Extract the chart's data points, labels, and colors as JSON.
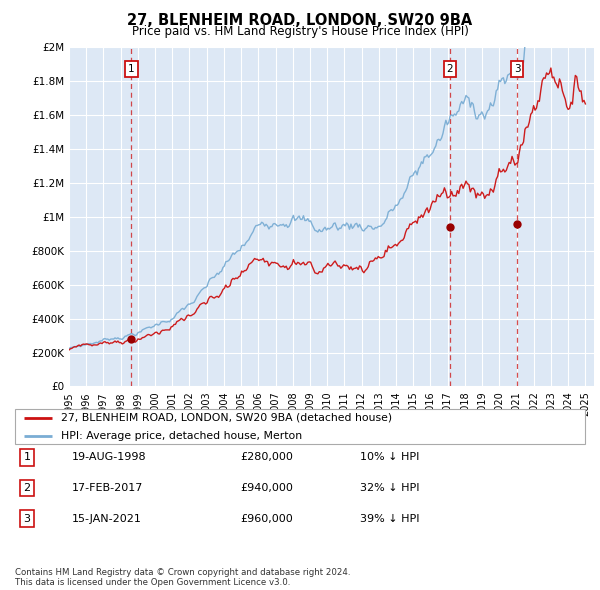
{
  "title": "27, BLENHEIM ROAD, LONDON, SW20 9BA",
  "subtitle": "Price paid vs. HM Land Registry's House Price Index (HPI)",
  "ylabel_ticks": [
    "£0",
    "£200K",
    "£400K",
    "£600K",
    "£800K",
    "£1M",
    "£1.2M",
    "£1.4M",
    "£1.6M",
    "£1.8M",
    "£2M"
  ],
  "ytick_values": [
    0,
    200000,
    400000,
    600000,
    800000,
    1000000,
    1200000,
    1400000,
    1600000,
    1800000,
    2000000
  ],
  "ylim": [
    0,
    2000000
  ],
  "xlim_start": 1995.3,
  "xlim_end": 2025.5,
  "hpi_color": "#7aadd4",
  "price_color": "#cc1111",
  "bg_color": "#dde8f5",
  "grid_color": "#ffffff",
  "sale_marker_color": "#990000",
  "vline_color": "#cc1111",
  "sale1_x": 1998.63,
  "sale1_y": 280000,
  "sale2_x": 2017.12,
  "sale2_y": 940000,
  "sale3_x": 2021.04,
  "sale3_y": 960000,
  "legend_label_price": "27, BLENHEIM ROAD, LONDON, SW20 9BA (detached house)",
  "legend_label_hpi": "HPI: Average price, detached house, Merton",
  "table_rows": [
    {
      "num": "1",
      "date": "19-AUG-1998",
      "price": "£280,000",
      "note": "10% ↓ HPI"
    },
    {
      "num": "2",
      "date": "17-FEB-2017",
      "price": "£940,000",
      "note": "32% ↓ HPI"
    },
    {
      "num": "3",
      "date": "15-JAN-2021",
      "price": "£960,000",
      "note": "39% ↓ HPI"
    }
  ],
  "footnote": "Contains HM Land Registry data © Crown copyright and database right 2024.\nThis data is licensed under the Open Government Licence v3.0."
}
